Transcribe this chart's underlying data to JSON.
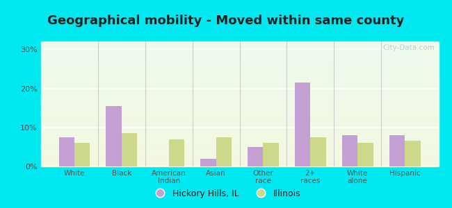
{
  "title": "Geographical mobility - Moved within same county",
  "categories": [
    "White",
    "Black",
    "American\nIndian",
    "Asian",
    "Other\nrace",
    "2+\nraces",
    "White\nalone",
    "Hispanic"
  ],
  "hickory_values": [
    7.5,
    15.5,
    0.0,
    2.0,
    5.0,
    21.5,
    8.0,
    8.0
  ],
  "illinois_values": [
    6.0,
    8.5,
    7.0,
    7.5,
    6.0,
    7.5,
    6.0,
    6.5
  ],
  "hickory_color": "#c49fd4",
  "illinois_color": "#cdd88a",
  "legend_hickory": "Hickory Hills, IL",
  "legend_illinois": "Illinois",
  "ylim": [
    0,
    32
  ],
  "yticks": [
    0,
    10,
    20,
    30
  ],
  "ytick_labels": [
    "0%",
    "10%",
    "20%",
    "30%"
  ],
  "bg_outer": "#00e8f0",
  "title_color": "#222222",
  "title_fontsize": 13,
  "watermark": "City-Data.com",
  "grid_color": "#ffffff",
  "separator_color": "#cccccc",
  "tick_color": "#555555"
}
